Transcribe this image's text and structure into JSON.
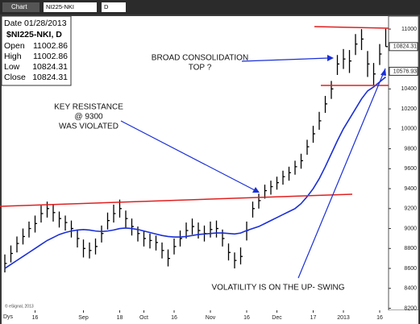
{
  "toolbar": {
    "title": "Chart",
    "symbol": "NI225-NKI",
    "interval": "D"
  },
  "info": {
    "date_label": "Date",
    "date": "01/28/2013",
    "symbol": "$NI225-NKI, D",
    "rows": [
      {
        "label": "Open",
        "value": 11002.86
      },
      {
        "label": "High",
        "value": 11002.86
      },
      {
        "label": "Low",
        "value": 10824.31
      },
      {
        "label": "Close",
        "value": 10824.31
      }
    ]
  },
  "annotations": [
    {
      "lines": [
        "BROAD CONSOLIDATION",
        "TOP ?"
      ]
    },
    {
      "lines": [
        "KEY RESISTANCE",
        "@  9300",
        "WAS VIOLATED"
      ]
    },
    {
      "lines": [
        "VOLATILITY IS ON THE UP- SWING"
      ]
    }
  ],
  "copyright": "© eSignal, 2013",
  "x_axis_unit": "Dys",
  "chart_data": {
    "type": "ohlc",
    "categories": [
      null,
      null,
      null,
      null,
      null,
      "16",
      null,
      null,
      null,
      null,
      null,
      null,
      null,
      "Sep",
      null,
      null,
      null,
      null,
      null,
      "18",
      null,
      null,
      null,
      "Oct",
      null,
      null,
      null,
      null,
      "16",
      null,
      null,
      null,
      null,
      null,
      "Nov",
      null,
      null,
      null,
      null,
      null,
      "16",
      null,
      null,
      null,
      null,
      "Dec",
      null,
      null,
      null,
      null,
      null,
      "17",
      null,
      null,
      null,
      null,
      "2013",
      null,
      null,
      null,
      null,
      null,
      "16",
      null
    ],
    "series": [
      {
        "name": "high",
        "color": "#000000",
        "values": [
          8740,
          8830,
          8920,
          9000,
          9070,
          9130,
          9230,
          9270,
          9240,
          9170,
          9130,
          9080,
          8990,
          8890,
          8860,
          8900,
          9030,
          9160,
          9240,
          9290,
          9180,
          9100,
          9020,
          8980,
          8950,
          8930,
          8860,
          8790,
          8900,
          8980,
          9060,
          9100,
          9060,
          9030,
          9070,
          9080,
          8990,
          8850,
          8760,
          8810,
          9070,
          9270,
          9350,
          9440,
          9480,
          9520,
          9580,
          9620,
          9680,
          9750,
          9890,
          10030,
          10170,
          10330,
          10480,
          10740,
          10800,
          10790,
          10950,
          11000,
          10780,
          10660,
          10850,
          11002.86
        ]
      },
      {
        "name": "low",
        "color": "#000000",
        "values": [
          8560,
          8660,
          8760,
          8840,
          8910,
          8960,
          9060,
          9110,
          9070,
          9010,
          8980,
          8910,
          8810,
          8710,
          8700,
          8740,
          8860,
          8990,
          9060,
          9110,
          9010,
          8930,
          8870,
          8820,
          8800,
          8780,
          8700,
          8620,
          8740,
          8820,
          8900,
          8940,
          8900,
          8870,
          8910,
          8910,
          8820,
          8680,
          8600,
          8640,
          8880,
          9110,
          9200,
          9300,
          9340,
          9390,
          9440,
          9480,
          9540,
          9600,
          9740,
          9860,
          9990,
          10160,
          10300,
          10540,
          10600,
          10560,
          10740,
          10790,
          10520,
          10430,
          10640,
          10824.31
        ]
      },
      {
        "name": "close",
        "color": "#000000",
        "values": [
          8650,
          8750,
          8850,
          8920,
          9000,
          9050,
          9150,
          9200,
          9160,
          9100,
          9060,
          9000,
          8900,
          8800,
          8780,
          8820,
          8950,
          9080,
          9150,
          9200,
          9100,
          9020,
          8950,
          8900,
          8880,
          8860,
          8780,
          8700,
          8820,
          8900,
          8980,
          9020,
          8980,
          8950,
          8990,
          9000,
          8900,
          8760,
          8680,
          8720,
          8980,
          9200,
          9280,
          9380,
          9420,
          9460,
          9520,
          9560,
          9620,
          9680,
          9820,
          9950,
          10080,
          10250,
          10400,
          10650,
          10700,
          10680,
          10850,
          10900,
          10650,
          10550,
          10750,
          10824.31
        ]
      },
      {
        "name": "moving average",
        "color": "#1a2fd6",
        "values": [
          8600,
          8640,
          8680,
          8720,
          8760,
          8800,
          8840,
          8880,
          8910,
          8940,
          8960,
          8975,
          8985,
          8990,
          8985,
          8975,
          8970,
          8975,
          8985,
          9000,
          9005,
          9000,
          8990,
          8975,
          8960,
          8945,
          8930,
          8920,
          8915,
          8915,
          8920,
          8930,
          8940,
          8945,
          8950,
          8955,
          8955,
          8950,
          8945,
          8955,
          8980,
          9000,
          9020,
          9050,
          9080,
          9110,
          9140,
          9170,
          9200,
          9250,
          9320,
          9400,
          9500,
          9620,
          9750,
          9880,
          10000,
          10100,
          10200,
          10300,
          10380,
          10420,
          10470,
          10520
        ]
      }
    ],
    "price_markers": [
      10824.31,
      10576.93
    ],
    "ylim": [
      8180,
      11130
    ],
    "yticks": [
      8200,
      8400,
      8600,
      8800,
      9000,
      9200,
      9400,
      9600,
      9800,
      10000,
      10200,
      10400,
      11000
    ],
    "grid": false
  }
}
